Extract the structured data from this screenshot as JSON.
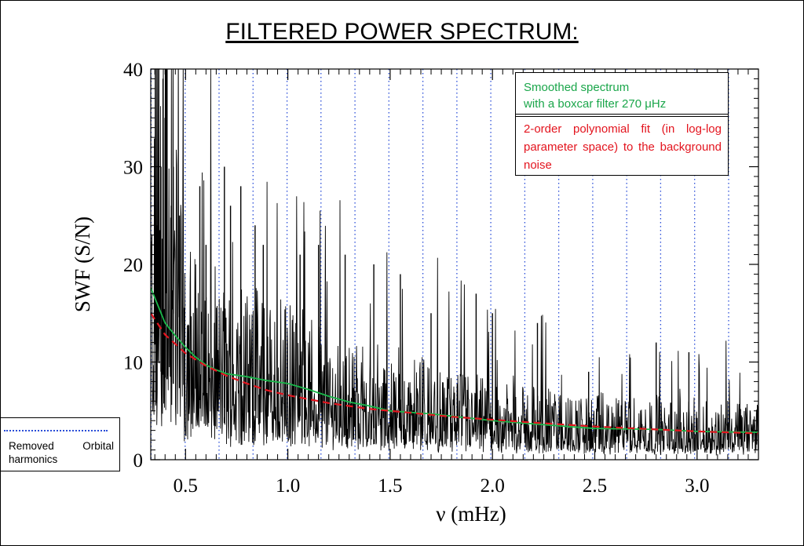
{
  "page": {
    "title": "FILTERED POWER SPECTRUM:"
  },
  "chart_data": {
    "type": "line",
    "title": "FILTERED POWER SPECTRUM:",
    "xlabel": "ν (mHz)",
    "ylabel": "SWF (S/N)",
    "xlim": [
      0.33,
      3.3
    ],
    "ylim": [
      0,
      40
    ],
    "x_ticks": [
      "0.5",
      "1.0",
      "1.5",
      "2.0",
      "2.5",
      "3.0"
    ],
    "y_ticks": [
      "0",
      "10",
      "20",
      "30",
      "40"
    ],
    "orbital_harmonics_mHz": [
      0.332,
      0.498,
      0.664,
      0.83,
      0.996,
      1.162,
      1.328,
      1.494,
      1.66,
      1.826,
      1.992,
      2.158,
      2.324,
      2.49,
      2.656,
      2.822,
      2.988,
      3.154
    ],
    "series": [
      {
        "name": "Smoothed spectrum with a boxcar filter 270 μHz",
        "color": "#19b84a",
        "x": [
          0.33,
          0.4,
          0.45,
          0.5,
          0.55,
          0.6,
          0.65,
          0.7,
          0.8,
          0.9,
          1.0,
          1.1,
          1.2,
          1.3,
          1.4,
          1.5,
          1.7,
          2.0,
          2.3,
          2.5,
          2.8,
          3.0,
          3.3
        ],
        "y": [
          17.6,
          14.0,
          12.7,
          11.5,
          10.5,
          9.7,
          9.2,
          8.8,
          8.5,
          8.1,
          7.8,
          7.2,
          6.5,
          5.9,
          5.5,
          5.0,
          4.7,
          4.0,
          3.5,
          3.2,
          3.1,
          2.9,
          2.8
        ]
      },
      {
        "name": "2-order polynomial fit (in log-log parameter space) to the background noise",
        "color": "#e3141e",
        "x": [
          0.33,
          0.4,
          0.5,
          0.6,
          0.7,
          0.8,
          0.9,
          1.0,
          1.2,
          1.4,
          1.6,
          1.8,
          2.0,
          2.2,
          2.5,
          2.8,
          3.0,
          3.3
        ],
        "y": [
          15.0,
          12.8,
          10.9,
          9.6,
          8.6,
          7.8,
          7.1,
          6.6,
          5.8,
          5.2,
          4.8,
          4.4,
          4.1,
          3.8,
          3.4,
          3.1,
          2.9,
          2.7
        ]
      }
    ],
    "legend": {
      "smoothed": "Smoothed spectrum\nwith a boxcar filter 270 μHz",
      "fit": "2-order polynomial fit (in log-log parameter space) to the background noise",
      "harmonics": "Removed Orbital harmonics"
    },
    "colors": {
      "spectrum": "#000000",
      "smoothed": "#19b84a",
      "fit": "#e3141e",
      "harmonics": "#2a4ed8"
    },
    "grid": false
  }
}
